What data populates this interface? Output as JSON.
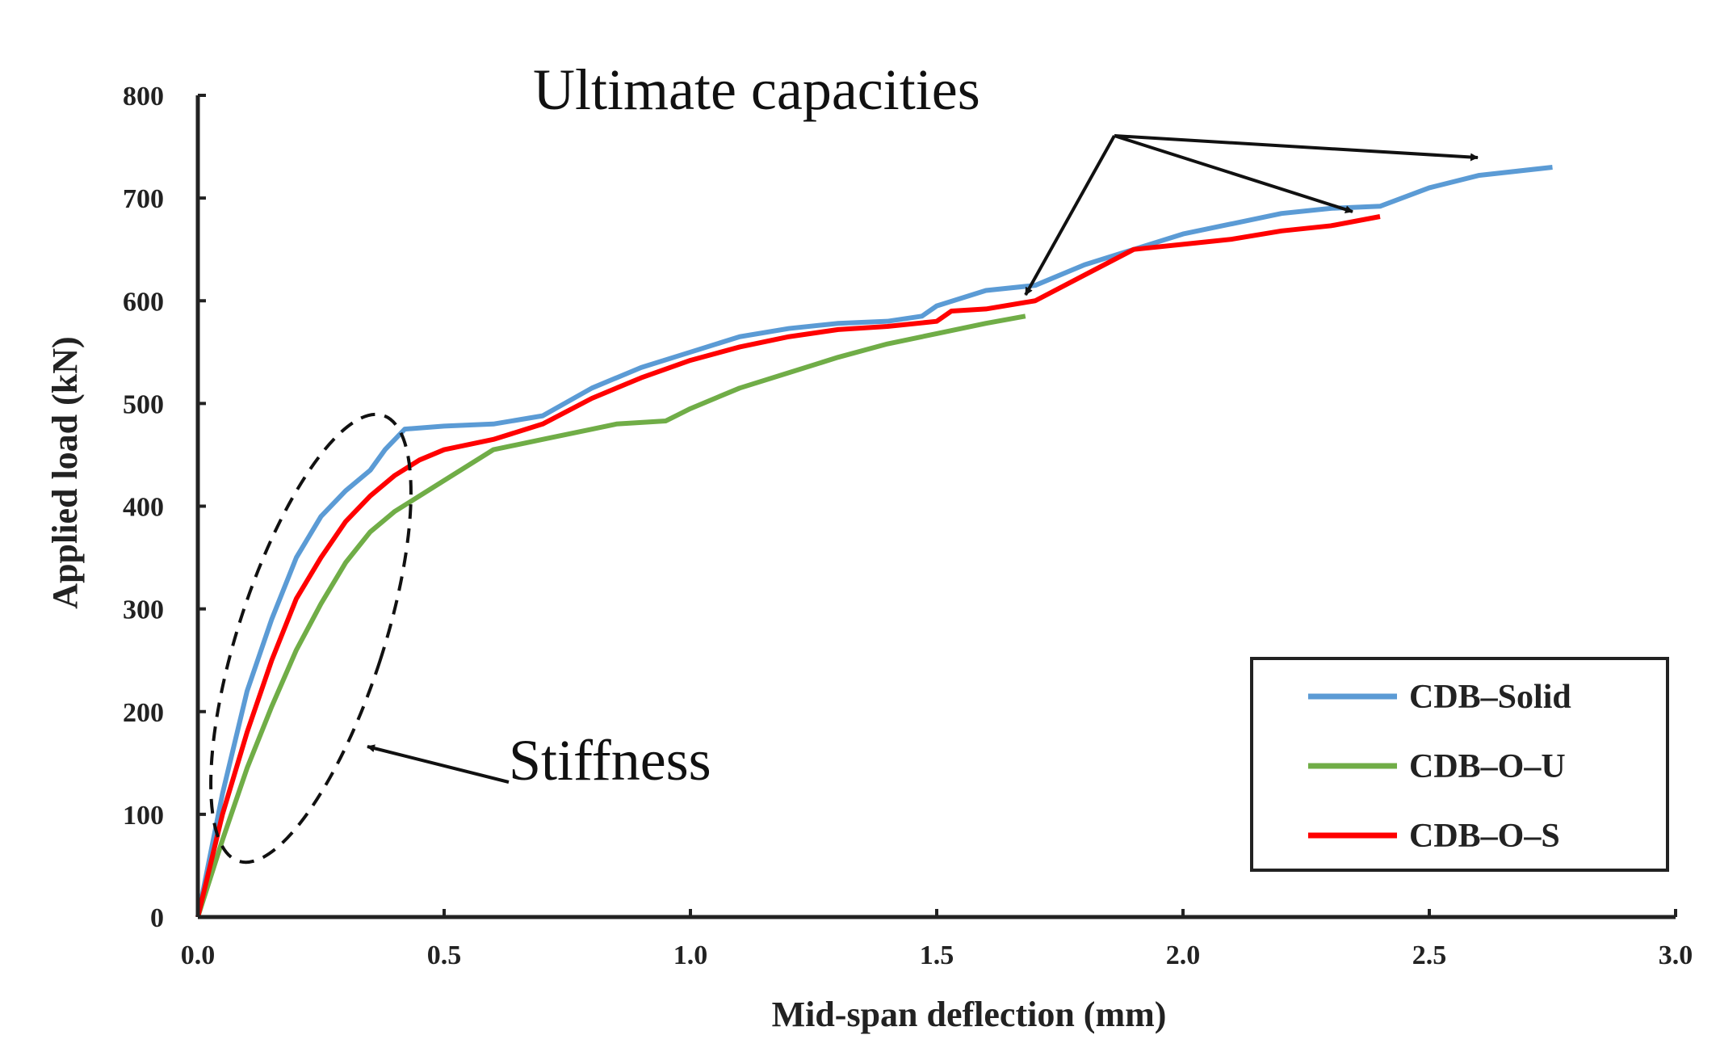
{
  "chart_data": {
    "type": "line",
    "title": "",
    "xlabel": "Mid-span deflection (mm)",
    "ylabel": "Applied load (kN)",
    "xlim": [
      0,
      3.0
    ],
    "ylim": [
      0,
      800
    ],
    "xticks": [
      "0.0",
      "0.5",
      "1.0",
      "1.5",
      "2.0",
      "2.5",
      "3.0"
    ],
    "yticks": [
      "0",
      "100",
      "200",
      "300",
      "400",
      "500",
      "600",
      "700",
      "800"
    ],
    "grid": false,
    "legend_position": "bottom-right",
    "series": [
      {
        "name": "CDB–Solid",
        "color": "#5b9bd5",
        "points": [
          [
            0,
            0
          ],
          [
            0.05,
            120
          ],
          [
            0.1,
            220
          ],
          [
            0.15,
            290
          ],
          [
            0.2,
            350
          ],
          [
            0.25,
            390
          ],
          [
            0.3,
            415
          ],
          [
            0.35,
            435
          ],
          [
            0.38,
            455
          ],
          [
            0.42,
            475
          ],
          [
            0.5,
            478
          ],
          [
            0.6,
            480
          ],
          [
            0.7,
            488
          ],
          [
            0.8,
            515
          ],
          [
            0.9,
            535
          ],
          [
            1.0,
            550
          ],
          [
            1.1,
            565
          ],
          [
            1.2,
            573
          ],
          [
            1.3,
            578
          ],
          [
            1.4,
            580
          ],
          [
            1.47,
            585
          ],
          [
            1.5,
            595
          ],
          [
            1.6,
            610
          ],
          [
            1.7,
            615
          ],
          [
            1.8,
            635
          ],
          [
            1.9,
            650
          ],
          [
            2.0,
            665
          ],
          [
            2.1,
            675
          ],
          [
            2.2,
            685
          ],
          [
            2.3,
            690
          ],
          [
            2.4,
            692
          ],
          [
            2.5,
            710
          ],
          [
            2.6,
            722
          ],
          [
            2.75,
            730
          ]
        ]
      },
      {
        "name": "CDB–O–U",
        "color": "#70ad47",
        "points": [
          [
            0,
            0
          ],
          [
            0.05,
            75
          ],
          [
            0.1,
            145
          ],
          [
            0.15,
            205
          ],
          [
            0.2,
            260
          ],
          [
            0.25,
            305
          ],
          [
            0.3,
            345
          ],
          [
            0.35,
            375
          ],
          [
            0.4,
            395
          ],
          [
            0.45,
            410
          ],
          [
            0.5,
            425
          ],
          [
            0.6,
            455
          ],
          [
            0.7,
            465
          ],
          [
            0.8,
            475
          ],
          [
            0.85,
            480
          ],
          [
            0.95,
            483
          ],
          [
            1.0,
            495
          ],
          [
            1.1,
            515
          ],
          [
            1.2,
            530
          ],
          [
            1.3,
            545
          ],
          [
            1.4,
            558
          ],
          [
            1.5,
            568
          ],
          [
            1.6,
            578
          ],
          [
            1.68,
            585
          ]
        ]
      },
      {
        "name": "CDB–O–S",
        "color": "#ff0000",
        "points": [
          [
            0,
            0
          ],
          [
            0.05,
            100
          ],
          [
            0.1,
            180
          ],
          [
            0.15,
            250
          ],
          [
            0.2,
            310
          ],
          [
            0.25,
            350
          ],
          [
            0.3,
            385
          ],
          [
            0.35,
            410
          ],
          [
            0.4,
            430
          ],
          [
            0.45,
            445
          ],
          [
            0.5,
            455
          ],
          [
            0.6,
            465
          ],
          [
            0.7,
            480
          ],
          [
            0.8,
            505
          ],
          [
            0.9,
            525
          ],
          [
            1.0,
            542
          ],
          [
            1.1,
            555
          ],
          [
            1.2,
            565
          ],
          [
            1.3,
            572
          ],
          [
            1.4,
            575
          ],
          [
            1.5,
            580
          ],
          [
            1.53,
            590
          ],
          [
            1.6,
            592
          ],
          [
            1.7,
            600
          ],
          [
            1.8,
            625
          ],
          [
            1.9,
            650
          ],
          [
            2.0,
            655
          ],
          [
            2.1,
            660
          ],
          [
            2.2,
            668
          ],
          [
            2.3,
            673
          ],
          [
            2.4,
            682
          ]
        ]
      }
    ],
    "annotations": [
      {
        "text": "Ultimate capacities",
        "arrows_to": [
          [
            1.7,
            598
          ],
          [
            2.35,
            688
          ],
          [
            2.62,
            735
          ]
        ]
      },
      {
        "text": "Stiffness",
        "arrow_to": "dashed ellipse around initial region (0.0–0.45 mm)"
      }
    ]
  }
}
